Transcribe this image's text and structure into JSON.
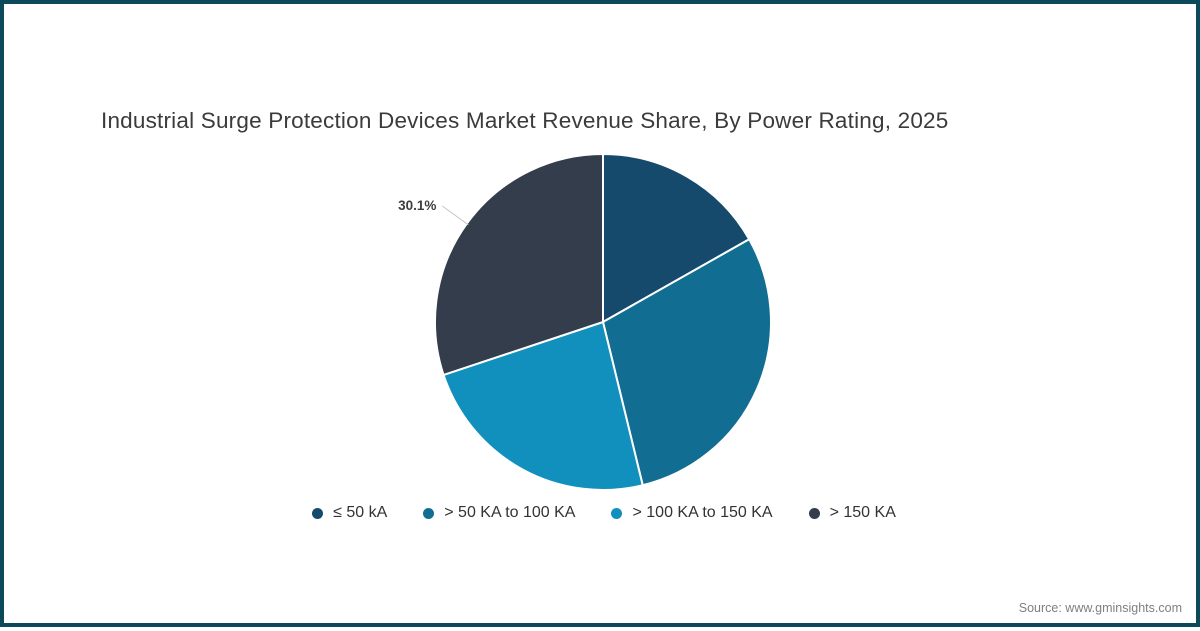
{
  "frame": {
    "border_color": "#0d4a59",
    "background": "#ffffff"
  },
  "title": "Industrial Surge Protection Devices Market Revenue Share, By Power Rating, 2025",
  "source": "Source: www.gminsights.com",
  "chart_data": {
    "type": "pie",
    "title": "Industrial Surge Protection Devices Market Revenue Share, By Power Rating, 2025",
    "unit": "%",
    "start_angle_deg": 0,
    "direction": "clockwise",
    "legend_position": "bottom",
    "slices": [
      {
        "label": "≤ 50 kA",
        "value": 16.8,
        "color": "#164a6d",
        "data_label": null
      },
      {
        "label": "> 50 KA to 100 KA",
        "value": 29.4,
        "color": "#116e92",
        "data_label": null
      },
      {
        "label": "> 100 KA to 150 KA",
        "value": 23.7,
        "color": "#1190bd",
        "data_label": null
      },
      {
        "label": "> 150 KA",
        "value": 30.1,
        "color": "#333d4b",
        "data_label": "30.1%"
      }
    ],
    "label_style": {
      "color": "#3d3d3d",
      "leader_line_color": "#c3c3c3"
    }
  }
}
